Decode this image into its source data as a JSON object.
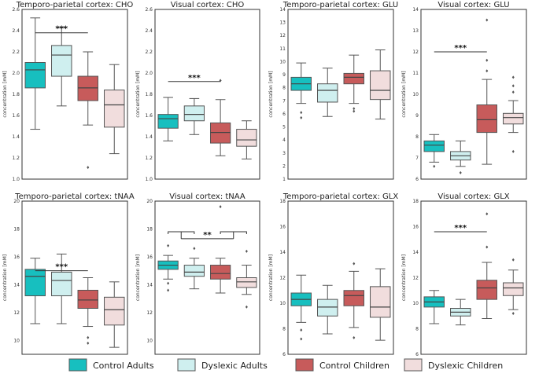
{
  "chart_data": [
    {
      "type": "box",
      "title": "Temporo-parietal cortex: CHO",
      "ylabel": "concentration [mM]",
      "ylim": [
        1.0,
        2.6
      ],
      "yticks": [
        1.0,
        1.2,
        1.4,
        1.6,
        1.8,
        2.0,
        2.2,
        2.4,
        2.6
      ],
      "yticks_text": [
        "1.0",
        "1.2",
        "1.4",
        "1.6",
        "1.8",
        "2.0",
        "2.2",
        "2.4",
        "2.6"
      ],
      "series": [
        {
          "name": "Control Adults",
          "color": "#17bfbf",
          "whislo": 1.47,
          "q1": 1.86,
          "med": 2.03,
          "q3": 2.1,
          "whishi": 2.52,
          "fliers": []
        },
        {
          "name": "Dyslexic Adults",
          "color": "#cfefef",
          "whislo": 1.69,
          "q1": 1.97,
          "med": 2.17,
          "q3": 2.26,
          "whishi": 2.43,
          "fliers": []
        },
        {
          "name": "Control Children",
          "color": "#c75b5b",
          "whislo": 1.51,
          "q1": 1.74,
          "med": 1.86,
          "q3": 1.97,
          "whishi": 2.2,
          "fliers": [
            1.11
          ]
        },
        {
          "name": "Dyslexic Children",
          "color": "#f1dddd",
          "whislo": 1.24,
          "q1": 1.49,
          "med": 1.7,
          "q3": 1.84,
          "whishi": 2.08,
          "fliers": []
        }
      ],
      "annotations": [
        {
          "text": "***",
          "y": 2.38,
          "from": 0,
          "to": 2
        }
      ]
    },
    {
      "type": "box",
      "title": "Visual cortex: CHO",
      "ylabel": "concentration [mM]",
      "ylim": [
        1.0,
        2.6
      ],
      "yticks": [
        1.0,
        1.2,
        1.4,
        1.6,
        1.8,
        2.0,
        2.2,
        2.4,
        2.6
      ],
      "yticks_text": [
        "1.0",
        "1.2",
        "1.4",
        "1.6",
        "1.8",
        "2.0",
        "2.2",
        "2.4",
        "2.6"
      ],
      "series": [
        {
          "name": "Control Adults",
          "color": "#17bfbf",
          "whislo": 1.36,
          "q1": 1.48,
          "med": 1.57,
          "q3": 1.61,
          "whishi": 1.77,
          "fliers": []
        },
        {
          "name": "Dyslexic Adults",
          "color": "#cfefef",
          "whislo": 1.42,
          "q1": 1.55,
          "med": 1.61,
          "q3": 1.69,
          "whishi": 1.76,
          "fliers": []
        },
        {
          "name": "Control Children",
          "color": "#c75b5b",
          "whislo": 1.22,
          "q1": 1.34,
          "med": 1.44,
          "q3": 1.53,
          "whishi": 1.75,
          "fliers": [
            1.93
          ]
        },
        {
          "name": "Dyslexic Children",
          "color": "#f1dddd",
          "whislo": 1.19,
          "q1": 1.31,
          "med": 1.37,
          "q3": 1.47,
          "whishi": 1.55,
          "fliers": []
        }
      ],
      "annotations": [
        {
          "text": "***",
          "y": 1.92,
          "from": 0,
          "to": 2
        }
      ]
    },
    {
      "type": "box",
      "title": "Temporo-parietal cortex: GLU",
      "ylabel": "concentration [mM]",
      "ylim": [
        1,
        14
      ],
      "yticks": [
        1,
        2,
        3,
        4,
        5,
        6,
        7,
        8,
        9,
        10,
        11,
        12,
        13,
        14
      ],
      "yticks_text": [
        "1",
        "2",
        "3",
        "4",
        "5",
        "6",
        "7",
        "8",
        "9",
        "10",
        "11",
        "12",
        "13",
        "14"
      ],
      "series": [
        {
          "name": "Control Adults",
          "color": "#17bfbf",
          "whislo": 6.8,
          "q1": 7.8,
          "med": 8.3,
          "q3": 8.8,
          "whishi": 9.9,
          "fliers": [
            6.1,
            5.7
          ]
        },
        {
          "name": "Dyslexic Adults",
          "color": "#cfefef",
          "whislo": 5.8,
          "q1": 6.9,
          "med": 7.8,
          "q3": 8.3,
          "whishi": 9.5,
          "fliers": []
        },
        {
          "name": "Control Children",
          "color": "#c75b5b",
          "whislo": 6.8,
          "q1": 8.3,
          "med": 8.8,
          "q3": 9.1,
          "whishi": 10.5,
          "fliers": [
            6.4,
            6.2
          ]
        },
        {
          "name": "Dyslexic Children",
          "color": "#f1dddd",
          "whislo": 5.6,
          "q1": 7.1,
          "med": 7.8,
          "q3": 9.3,
          "whishi": 10.9,
          "fliers": []
        }
      ],
      "annotations": []
    },
    {
      "type": "box",
      "title": "Visual cortex: GLU",
      "ylabel": "concentration [mM]",
      "ylim": [
        6,
        14
      ],
      "yticks": [
        6,
        7,
        8,
        9,
        10,
        11,
        12,
        13,
        14
      ],
      "yticks_text": [
        "6",
        "7",
        "8",
        "9",
        "10",
        "11",
        "12",
        "13",
        "14"
      ],
      "series": [
        {
          "name": "Control Adults",
          "color": "#17bfbf",
          "whislo": 6.8,
          "q1": 7.3,
          "med": 7.6,
          "q3": 7.8,
          "whishi": 8.1,
          "fliers": [
            6.6
          ]
        },
        {
          "name": "Dyslexic Adults",
          "color": "#cfefef",
          "whislo": 6.6,
          "q1": 6.9,
          "med": 7.1,
          "q3": 7.3,
          "whishi": 7.8,
          "fliers": [
            6.3
          ]
        },
        {
          "name": "Control Children",
          "color": "#c75b5b",
          "whislo": 6.7,
          "q1": 8.2,
          "med": 8.8,
          "q3": 9.5,
          "whishi": 10.7,
          "fliers": [
            13.5,
            11.6,
            11.1
          ]
        },
        {
          "name": "Dyslexic Children",
          "color": "#f1dddd",
          "whislo": 8.2,
          "q1": 8.6,
          "med": 8.9,
          "q3": 9.1,
          "whishi": 9.7,
          "fliers": [
            10.8,
            10.4,
            10.1,
            7.3
          ]
        }
      ],
      "annotations": [
        {
          "text": "***",
          "y": 12.0,
          "from": 0,
          "to": 2
        }
      ]
    },
    {
      "type": "box",
      "title": "Temporo-parietal cortex: tNAA",
      "ylabel": "concentration [mM]",
      "ylim": [
        9,
        20
      ],
      "yticks": [
        10,
        12,
        14,
        16,
        18,
        20
      ],
      "yticks_text": [
        "10",
        "12",
        "14",
        "16",
        "18",
        "20"
      ],
      "series": [
        {
          "name": "Control Adults",
          "color": "#17bfbf",
          "whislo": 11.2,
          "q1": 13.2,
          "med": 14.6,
          "q3": 15.1,
          "whishi": 15.9,
          "fliers": []
        },
        {
          "name": "Dyslexic Adults",
          "color": "#cfefef",
          "whislo": 11.2,
          "q1": 13.2,
          "med": 14.3,
          "q3": 14.9,
          "whishi": 16.2,
          "fliers": []
        },
        {
          "name": "Control Children",
          "color": "#c75b5b",
          "whislo": 11.0,
          "q1": 12.3,
          "med": 12.9,
          "q3": 13.6,
          "whishi": 14.5,
          "fliers": [
            10.2,
            9.8
          ]
        },
        {
          "name": "Dyslexic Children",
          "color": "#f1dddd",
          "whislo": 9.5,
          "q1": 11.1,
          "med": 12.2,
          "q3": 13.1,
          "whishi": 14.2,
          "fliers": []
        }
      ],
      "annotations": [
        {
          "text": "***",
          "y": 15.0,
          "from": 0,
          "to": 2
        }
      ]
    },
    {
      "type": "box",
      "title": "Visual cortex: tNAA",
      "ylabel": "concentration [mM]",
      "ylim": [
        9,
        20
      ],
      "yticks": [
        10,
        12,
        14,
        16,
        18,
        20
      ],
      "yticks_text": [
        "10",
        "12",
        "14",
        "16",
        "18",
        "20"
      ],
      "series": [
        {
          "name": "Control Adults",
          "color": "#17bfbf",
          "whislo": 14.4,
          "q1": 15.1,
          "med": 15.4,
          "q3": 15.7,
          "whishi": 16.1,
          "fliers": [
            16.8,
            14.1,
            13.6
          ]
        },
        {
          "name": "Dyslexic Adults",
          "color": "#cfefef",
          "whislo": 13.7,
          "q1": 14.6,
          "med": 14.9,
          "q3": 15.4,
          "whishi": 15.9,
          "fliers": [
            16.6
          ]
        },
        {
          "name": "Control Children",
          "color": "#c75b5b",
          "whislo": 13.4,
          "q1": 14.4,
          "med": 14.8,
          "q3": 15.4,
          "whishi": 15.9,
          "fliers": [
            19.6
          ]
        },
        {
          "name": "Dyslexic Children",
          "color": "#f1dddd",
          "whislo": 13.3,
          "q1": 13.8,
          "med": 14.2,
          "q3": 14.5,
          "whishi": 15.4,
          "fliers": [
            16.4,
            12.4
          ]
        }
      ],
      "annotations": [
        {
          "text": "**",
          "y": 17.3,
          "from": 0.5,
          "to": 2.5,
          "bracket_y": 17.8
        }
      ]
    },
    {
      "type": "box",
      "title": "Temporo-parietal cortex: GLX",
      "ylabel": "concentration [mM]",
      "ylim": [
        6,
        18
      ],
      "yticks": [
        6,
        8,
        10,
        12,
        14,
        16,
        18
      ],
      "yticks_text": [
        "6",
        "8",
        "10",
        "12",
        "14",
        "16",
        "18"
      ],
      "series": [
        {
          "name": "Control Adults",
          "color": "#17bfbf",
          "whislo": 8.5,
          "q1": 9.8,
          "med": 10.3,
          "q3": 10.8,
          "whishi": 12.2,
          "fliers": [
            7.9,
            7.2
          ]
        },
        {
          "name": "Dyslexic Adults",
          "color": "#cfefef",
          "whislo": 7.6,
          "q1": 9.0,
          "med": 9.7,
          "q3": 10.3,
          "whishi": 11.4,
          "fliers": []
        },
        {
          "name": "Control Children",
          "color": "#c75b5b",
          "whislo": 8.1,
          "q1": 9.8,
          "med": 10.6,
          "q3": 11.0,
          "whishi": 12.5,
          "fliers": [
            13.1,
            7.3
          ]
        },
        {
          "name": "Dyslexic Children",
          "color": "#f1dddd",
          "whislo": 7.1,
          "q1": 8.9,
          "med": 9.7,
          "q3": 11.3,
          "whishi": 12.7,
          "fliers": []
        }
      ],
      "annotations": []
    },
    {
      "type": "box",
      "title": "Visual cortex: GLX",
      "ylabel": "concentration [mM]",
      "ylim": [
        6,
        18
      ],
      "yticks": [
        6,
        8,
        10,
        12,
        14,
        16,
        18
      ],
      "yticks_text": [
        "6",
        "8",
        "10",
        "12",
        "14",
        "16",
        "18"
      ],
      "series": [
        {
          "name": "Control Adults",
          "color": "#17bfbf",
          "whislo": 8.4,
          "q1": 9.7,
          "med": 10.1,
          "q3": 10.5,
          "whishi": 11.0,
          "fliers": []
        },
        {
          "name": "Dyslexic Adults",
          "color": "#cfefef",
          "whislo": 8.3,
          "q1": 9.0,
          "med": 9.3,
          "q3": 9.6,
          "whishi": 10.3,
          "fliers": []
        },
        {
          "name": "Control Children",
          "color": "#c75b5b",
          "whislo": 8.8,
          "q1": 10.3,
          "med": 11.2,
          "q3": 11.8,
          "whishi": 13.2,
          "fliers": [
            17.0,
            14.4
          ]
        },
        {
          "name": "Dyslexic Children",
          "color": "#f1dddd",
          "whislo": 9.5,
          "q1": 10.6,
          "med": 11.2,
          "q3": 11.6,
          "whishi": 12.6,
          "fliers": [
            13.4,
            9.2
          ]
        }
      ],
      "annotations": [
        {
          "text": "***",
          "y": 15.6,
          "from": 0,
          "to": 2
        }
      ]
    }
  ],
  "legend": {
    "placement": "bottom",
    "items": [
      {
        "label": "Control Adults",
        "color": "#17bfbf"
      },
      {
        "label": "Dyslexic Adults",
        "color": "#cfefef"
      },
      {
        "label": "Control Children",
        "color": "#c75b5b"
      },
      {
        "label": "Dyslexic Children",
        "color": "#f1dddd"
      }
    ]
  }
}
